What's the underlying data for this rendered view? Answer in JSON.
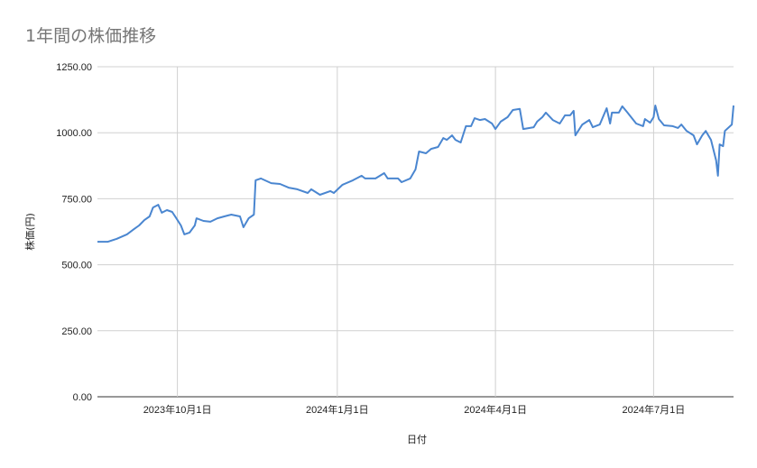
{
  "chart_data": {
    "type": "line",
    "title": "1年間の株価推移",
    "xlabel": "日付",
    "ylabel": "株価(円)",
    "xlim": [
      "2023-08-16",
      "2024-08-16"
    ],
    "ylim": [
      0,
      1250
    ],
    "yticks": [
      0,
      250,
      500,
      750,
      1000,
      1250
    ],
    "ytick_labels": [
      "0.00",
      "250.00",
      "500.00",
      "750.00",
      "1000.00",
      "1250.00"
    ],
    "xticks": [
      "2023-10-01",
      "2024-01-01",
      "2024-04-01",
      "2024-07-01"
    ],
    "xtick_labels": [
      "2023年10月1日",
      "2024年1月1日",
      "2024年4月1日",
      "2024年7月1日"
    ],
    "grid": true,
    "legend": "none",
    "color": "#4a86d0",
    "points": [
      [
        "2023-08-16",
        587
      ],
      [
        "2023-08-22",
        587
      ],
      [
        "2023-08-27",
        598
      ],
      [
        "2023-09-02",
        615
      ],
      [
        "2023-09-06",
        635
      ],
      [
        "2023-09-09",
        649
      ],
      [
        "2023-09-12",
        669
      ],
      [
        "2023-09-15",
        683
      ],
      [
        "2023-09-17",
        717
      ],
      [
        "2023-09-20",
        727
      ],
      [
        "2023-09-22",
        697
      ],
      [
        "2023-09-25",
        707
      ],
      [
        "2023-09-28",
        700
      ],
      [
        "2023-09-30",
        680
      ],
      [
        "2023-10-03",
        649
      ],
      [
        "2023-10-05",
        615
      ],
      [
        "2023-10-08",
        622
      ],
      [
        "2023-10-11",
        649
      ],
      [
        "2023-10-12",
        676
      ],
      [
        "2023-10-16",
        666
      ],
      [
        "2023-10-20",
        663
      ],
      [
        "2023-10-24",
        676
      ],
      [
        "2023-10-28",
        683
      ],
      [
        "2023-11-01",
        690
      ],
      [
        "2023-11-06",
        683
      ],
      [
        "2023-11-08",
        642
      ],
      [
        "2023-11-11",
        676
      ],
      [
        "2023-11-14",
        690
      ],
      [
        "2023-11-15",
        820
      ],
      [
        "2023-11-18",
        827
      ],
      [
        "2023-11-24",
        809
      ],
      [
        "2023-11-29",
        806
      ],
      [
        "2023-12-04",
        792
      ],
      [
        "2023-12-09",
        786
      ],
      [
        "2023-12-15",
        772
      ],
      [
        "2023-12-17",
        786
      ],
      [
        "2023-12-22",
        765
      ],
      [
        "2023-12-28",
        779
      ],
      [
        "2023-12-30",
        772
      ],
      [
        "2024-01-04",
        803
      ],
      [
        "2024-01-10",
        820
      ],
      [
        "2024-01-15",
        837
      ],
      [
        "2024-01-17",
        827
      ],
      [
        "2024-01-23",
        827
      ],
      [
        "2024-01-28",
        847
      ],
      [
        "2024-01-30",
        827
      ],
      [
        "2024-02-05",
        827
      ],
      [
        "2024-02-07",
        813
      ],
      [
        "2024-02-12",
        827
      ],
      [
        "2024-02-15",
        861
      ],
      [
        "2024-02-17",
        929
      ],
      [
        "2024-02-21",
        922
      ],
      [
        "2024-02-24",
        939
      ],
      [
        "2024-02-28",
        946
      ],
      [
        "2024-03-02",
        980
      ],
      [
        "2024-03-04",
        973
      ],
      [
        "2024-03-07",
        990
      ],
      [
        "2024-03-09",
        973
      ],
      [
        "2024-03-12",
        963
      ],
      [
        "2024-03-15",
        1025
      ],
      [
        "2024-03-18",
        1025
      ],
      [
        "2024-03-20",
        1055
      ],
      [
        "2024-03-23",
        1048
      ],
      [
        "2024-03-26",
        1052
      ],
      [
        "2024-03-30",
        1035
      ],
      [
        "2024-04-01",
        1014
      ],
      [
        "2024-04-04",
        1042
      ],
      [
        "2024-04-08",
        1059
      ],
      [
        "2024-04-11",
        1086
      ],
      [
        "2024-04-15",
        1090
      ],
      [
        "2024-04-17",
        1014
      ],
      [
        "2024-04-23",
        1021
      ],
      [
        "2024-04-25",
        1042
      ],
      [
        "2024-04-28",
        1059
      ],
      [
        "2024-04-30",
        1076
      ],
      [
        "2024-05-04",
        1048
      ],
      [
        "2024-05-08",
        1035
      ],
      [
        "2024-05-11",
        1066
      ],
      [
        "2024-05-14",
        1066
      ],
      [
        "2024-05-16",
        1083
      ],
      [
        "2024-05-17",
        990
      ],
      [
        "2024-05-21",
        1031
      ],
      [
        "2024-05-25",
        1048
      ],
      [
        "2024-05-27",
        1021
      ],
      [
        "2024-05-31",
        1031
      ],
      [
        "2024-06-04",
        1093
      ],
      [
        "2024-06-06",
        1035
      ],
      [
        "2024-06-07",
        1076
      ],
      [
        "2024-06-11",
        1076
      ],
      [
        "2024-06-13",
        1100
      ],
      [
        "2024-06-16",
        1076
      ],
      [
        "2024-06-21",
        1035
      ],
      [
        "2024-06-25",
        1025
      ],
      [
        "2024-06-26",
        1052
      ],
      [
        "2024-06-29",
        1038
      ],
      [
        "2024-07-01",
        1059
      ],
      [
        "2024-07-02",
        1103
      ],
      [
        "2024-07-04",
        1052
      ],
      [
        "2024-07-07",
        1028
      ],
      [
        "2024-07-12",
        1025
      ],
      [
        "2024-07-15",
        1018
      ],
      [
        "2024-07-17",
        1031
      ],
      [
        "2024-07-20",
        1007
      ],
      [
        "2024-07-24",
        990
      ],
      [
        "2024-07-26",
        956
      ],
      [
        "2024-07-29",
        990
      ],
      [
        "2024-07-31",
        1007
      ],
      [
        "2024-08-03",
        973
      ],
      [
        "2024-08-06",
        895
      ],
      [
        "2024-08-07",
        837
      ],
      [
        "2024-08-08",
        956
      ],
      [
        "2024-08-10",
        949
      ],
      [
        "2024-08-11",
        1007
      ],
      [
        "2024-08-15",
        1031
      ],
      [
        "2024-08-16",
        1103
      ]
    ]
  }
}
